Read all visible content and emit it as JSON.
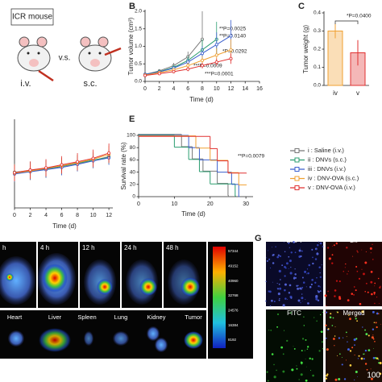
{
  "panels": {
    "A": {
      "title": "ICR mouse",
      "vs": "v.s.",
      "left": "i.v.",
      "right": "s.c."
    },
    "B": {
      "letter": "B"
    },
    "C": {
      "letter": "C"
    },
    "E": {
      "letter": "E"
    },
    "legend": [
      "i : Saline (i.v.)",
      "ii : DNVs (s.c.)",
      "iii : DNVs (i.v.)",
      "iv : DNV-OVA (s.c.)",
      "v : DNV-OVA (i.v.)"
    ],
    "F": {
      "times": [
        "h",
        "4 h",
        "12 h",
        "24 h",
        "48 h"
      ],
      "colorbar_ticks": [
        57344,
        49152,
        40960,
        32768,
        24576,
        16384,
        8192
      ],
      "organs": [
        "Heart",
        "Liver",
        "Spleen",
        "Lung",
        "Kidney",
        "Tumor"
      ]
    },
    "G": {
      "letter": "G",
      "labels": [
        "DAPI",
        "DiI",
        "FITC",
        "Merged"
      ],
      "scale": "100"
    }
  },
  "chart_data": [
    {
      "type": "line",
      "xlabel": "Time (d)",
      "ylabel": "Tumor volume (cm³)",
      "x": [
        0,
        2,
        4,
        6,
        8,
        10,
        12
      ],
      "xlim": [
        0,
        16
      ],
      "xticks": [
        0,
        2,
        4,
        6,
        8,
        10,
        12,
        14,
        16
      ],
      "ylim": [
        0,
        2
      ],
      "yticks": [
        {
          "value": 0,
          "label": "0.0"
        },
        {
          "value": 0.5,
          "label": "0.5"
        },
        {
          "value": 1,
          "label": "1.0"
        },
        {
          "value": 1.5,
          "label": "1.5"
        },
        {
          "value": 2,
          "label": "2.0"
        }
      ],
      "annotations": [
        "**P=0.0025",
        "**P=0.0140",
        "*P=0.0292",
        "***P=0.0009",
        "***P=0.0001"
      ],
      "series": [
        {
          "name": "Saline (i.v.)",
          "color": "#777777",
          "values": [
            0.2,
            0.3,
            0.45,
            0.7,
            1.2,
            null,
            null
          ],
          "errors": [
            0.03,
            0.05,
            0.08,
            0.15,
            0.8,
            null,
            null
          ]
        },
        {
          "name": "DNVs (s.c.)",
          "color": "#2a9d6f",
          "values": [
            0.2,
            0.28,
            0.4,
            0.6,
            0.9,
            1.2,
            null
          ],
          "errors": [
            0.03,
            0.05,
            0.07,
            0.12,
            0.3,
            0.5,
            null
          ]
        },
        {
          "name": "DNVs (i.v.)",
          "color": "#3a5fcd",
          "values": [
            0.2,
            0.27,
            0.38,
            0.55,
            0.8,
            1.05,
            1.3
          ],
          "errors": [
            0.03,
            0.04,
            0.06,
            0.1,
            0.2,
            0.35,
            0.45
          ]
        },
        {
          "name": "DNV-OVA (s.c.)",
          "color": "#f0a030",
          "values": [
            0.18,
            0.25,
            0.33,
            0.45,
            0.6,
            0.75,
            0.9
          ],
          "errors": [
            0.03,
            0.04,
            0.05,
            0.08,
            0.12,
            0.2,
            0.3
          ]
        },
        {
          "name": "DNV-OVA (i.v.)",
          "color": "#e03030",
          "values": [
            0.17,
            0.22,
            0.28,
            0.35,
            0.45,
            0.55,
            0.65
          ],
          "errors": [
            0.02,
            0.03,
            0.04,
            0.06,
            0.08,
            0.1,
            0.15
          ]
        }
      ]
    },
    {
      "type": "bar",
      "ylabel": "Tumor weight (g)",
      "categories": [
        "iv",
        "v"
      ],
      "values": [
        0.3,
        0.18
      ],
      "errors": [
        0.04,
        0.07
      ],
      "colors": [
        "#f0a030",
        "#e03030"
      ],
      "ylim": [
        0,
        0.4
      ],
      "yticks": [
        {
          "value": 0,
          "label": "0.0"
        },
        0.1,
        0.2,
        0.3,
        0.4
      ],
      "annotations": [
        "*P=0.0400"
      ]
    },
    {
      "type": "line",
      "xlabel": "Time (d)",
      "x": [
        0,
        2,
        4,
        6,
        8,
        10,
        12
      ],
      "xlim": [
        0,
        12.5
      ],
      "xticks": [
        0,
        2,
        4,
        6,
        8,
        10,
        12
      ],
      "ylim": [
        10,
        30
      ],
      "series": [
        {
          "name": "Saline (i.v.)",
          "color": "#777777",
          "values": [
            18,
            18.4,
            18.9,
            19.5,
            20.2,
            20.9,
            21.8
          ],
          "errors": [
            2,
            2,
            2,
            2,
            1.8,
            1.8,
            1.6
          ]
        },
        {
          "name": "DNVs (s.c.)",
          "color": "#2a9d6f",
          "values": [
            18.2,
            18.6,
            19,
            19.6,
            20.3,
            21,
            21.6
          ],
          "errors": [
            2,
            2,
            2,
            1.8,
            1.8,
            1.6,
            1.6
          ]
        },
        {
          "name": "DNVs (i.v.)",
          "color": "#3a5fcd",
          "values": [
            17.8,
            18.3,
            18.8,
            19.3,
            20,
            20.8,
            21.5
          ],
          "errors": [
            1.8,
            1.8,
            1.8,
            1.8,
            1.6,
            1.6,
            1.6
          ]
        },
        {
          "name": "DNV-OVA (s.c.)",
          "color": "#f0a030",
          "values": [
            18,
            18.5,
            19.1,
            19.7,
            20.4,
            21.2,
            22.3
          ],
          "errors": [
            1.8,
            1.8,
            1.8,
            1.8,
            1.8,
            1.8,
            2
          ]
        },
        {
          "name": "DNV-OVA (i.v.)",
          "color": "#e03030",
          "values": [
            18.1,
            18.7,
            19.2,
            19.9,
            20.6,
            21.4,
            22.6
          ],
          "errors": [
            2,
            2,
            2,
            2,
            2,
            2,
            2.2
          ]
        }
      ]
    },
    {
      "type": "step",
      "xlabel": "Time (d)",
      "ylabel": "Survival rate (%)",
      "xlim": [
        0,
        32
      ],
      "xticks": [
        0,
        10,
        20,
        30
      ],
      "ylim": [
        0,
        100
      ],
      "yticks": [
        0,
        20,
        40,
        60,
        80,
        100
      ],
      "annotations": [
        "**P=0.0079"
      ],
      "series": [
        {
          "name": "Saline (i.v.)",
          "color": "#777777",
          "x": [
            0,
            12,
            15,
            18,
            22,
            25
          ],
          "values": [
            100,
            80,
            60,
            40,
            20,
            0
          ]
        },
        {
          "name": "DNVs (s.c.)",
          "color": "#2a9d6f",
          "x": [
            0,
            10,
            14,
            17,
            20,
            27
          ],
          "values": [
            100,
            80,
            60,
            40,
            20,
            0
          ]
        },
        {
          "name": "DNVs (i.v.)",
          "color": "#3a5fcd",
          "x": [
            0,
            14,
            17,
            22,
            26,
            28
          ],
          "values": [
            100,
            80,
            60,
            40,
            20,
            0
          ]
        },
        {
          "name": "DNV-OVA (s.c.)",
          "color": "#f0a030",
          "x": [
            0,
            16,
            20,
            25,
            28,
            30
          ],
          "values": [
            100,
            80,
            60,
            40,
            20,
            20
          ]
        },
        {
          "name": "DNV-OVA (i.v.)",
          "color": "#e03030",
          "x": [
            0,
            20,
            22,
            25,
            30
          ],
          "values": [
            100,
            80,
            60,
            40,
            40
          ]
        }
      ]
    }
  ]
}
